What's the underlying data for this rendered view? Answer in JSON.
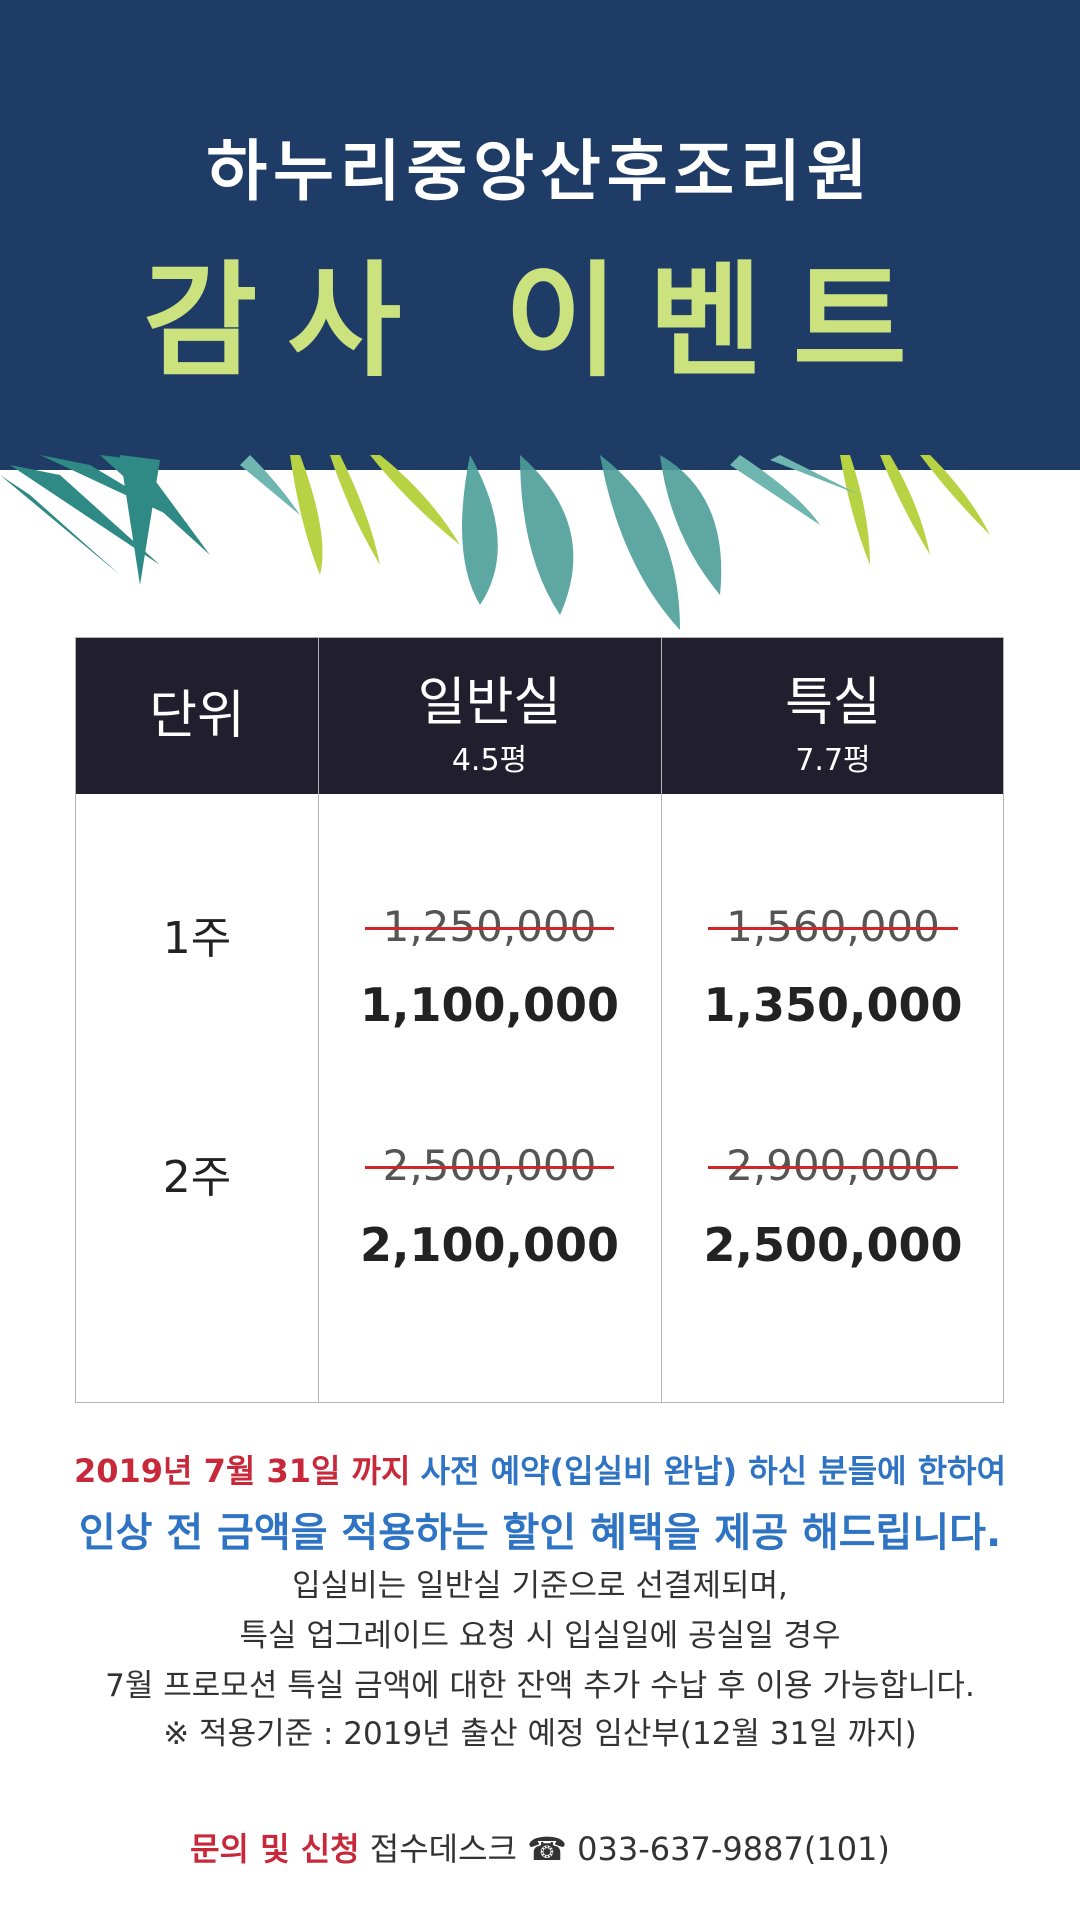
{
  "header": {
    "subtitle": "하누리중앙산후조리원",
    "title": "감사 이벤트"
  },
  "table": {
    "col_unit": "단위",
    "col_general": {
      "name": "일반실",
      "size": "4.5평"
    },
    "col_special": {
      "name": "특실",
      "size": "7.7평"
    },
    "rows": [
      {
        "unit": "1주",
        "general_old": "1,250,000",
        "general_new": "1,100,000",
        "special_old": "1,560,000",
        "special_new": "1,350,000"
      },
      {
        "unit": "2주",
        "general_old": "2,500,000",
        "general_new": "2,100,000",
        "special_old": "2,900,000",
        "special_new": "2,500,000"
      }
    ]
  },
  "notice": {
    "deadline": "2019년 7월 31일 까지",
    "condition": "사전 예약(입실비 완납) 하신 분들에 한하여",
    "benefit": "인상 전 금액을 적용하는 할인 혜택을 제공 해드립니다.",
    "detail1": "입실비는 일반실 기준으로 선결제되며,",
    "detail2": "특실 업그레이드 요청 시 입실일에 공실일 경우",
    "detail3": "7월 프로모션 특실 금액에 대한 잔액 추가 수납 후 이용 가능합니다.",
    "criteria": "※ 적용기준 : 2019년 출산 예정 임산부(12월 31일 까지)"
  },
  "contact": {
    "label": "문의 및 신청",
    "desk": "접수데스크",
    "phone_icon": "☎",
    "phone": "033-637-9887(101)"
  },
  "colors": {
    "header_bg": "#1f3c66",
    "title": "#cbe27f",
    "table_head": "#211f2e",
    "strike": "#d42626",
    "red": "#c8293a",
    "blue": "#2f73c3"
  }
}
